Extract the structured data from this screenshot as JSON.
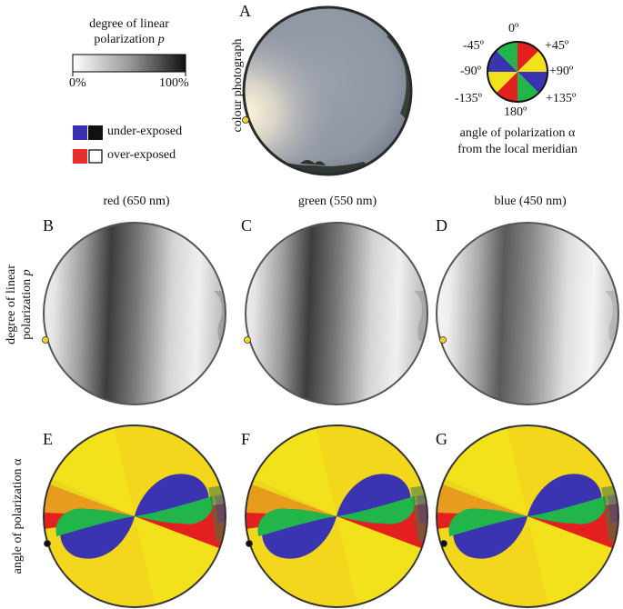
{
  "legend_p": {
    "title_line1": "degree of linear",
    "title_line2": "polarization",
    "title_var": "p",
    "min_label": "0%",
    "max_label": "100%"
  },
  "exposure_legend": {
    "under_label": "under-exposed",
    "over_label": "over-exposed",
    "under_colors": [
      "#3a2fb0",
      "#111111"
    ],
    "over_colors": [
      "#e8302a",
      "#ffffff"
    ]
  },
  "angle_legend": {
    "ticks": [
      "0º",
      "-45º",
      "+45º",
      "-90º",
      "+90º",
      "-135º",
      "+135º",
      "180º"
    ],
    "caption_line1": "angle of polarization α",
    "caption_line2": "from the local meridian",
    "colors": {
      "yellow": "#f2e21c",
      "red": "#e3201f",
      "blue": "#3a34b0",
      "green": "#22b54a"
    }
  },
  "panels": {
    "A": {
      "letter": "A",
      "side_label": "colour photograph"
    },
    "B": {
      "letter": "B"
    },
    "C": {
      "letter": "C"
    },
    "D": {
      "letter": "D"
    },
    "E": {
      "letter": "E"
    },
    "F": {
      "letter": "F"
    },
    "G": {
      "letter": "G"
    }
  },
  "columns": {
    "red": "red (650 nm)",
    "green": "green (550 nm)",
    "blue": "blue (450 nm)"
  },
  "row_labels": {
    "p_line1": "degree of linear",
    "p_line2": "polarization",
    "p_var": "p",
    "aop": "angle of polarization α"
  },
  "sun_marker_color": "#f2d22a"
}
